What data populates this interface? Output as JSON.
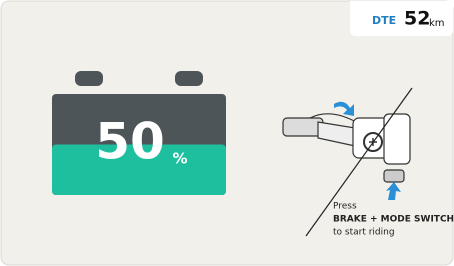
{
  "dte": {
    "label": "DTE",
    "value": 52,
    "unit": "km"
  },
  "battery": {
    "percent": 50,
    "unit": "%"
  },
  "instruction": {
    "line1": "Press",
    "line2": "BRAKE + MODE SWITCH",
    "line3": "to start riding"
  }
}
